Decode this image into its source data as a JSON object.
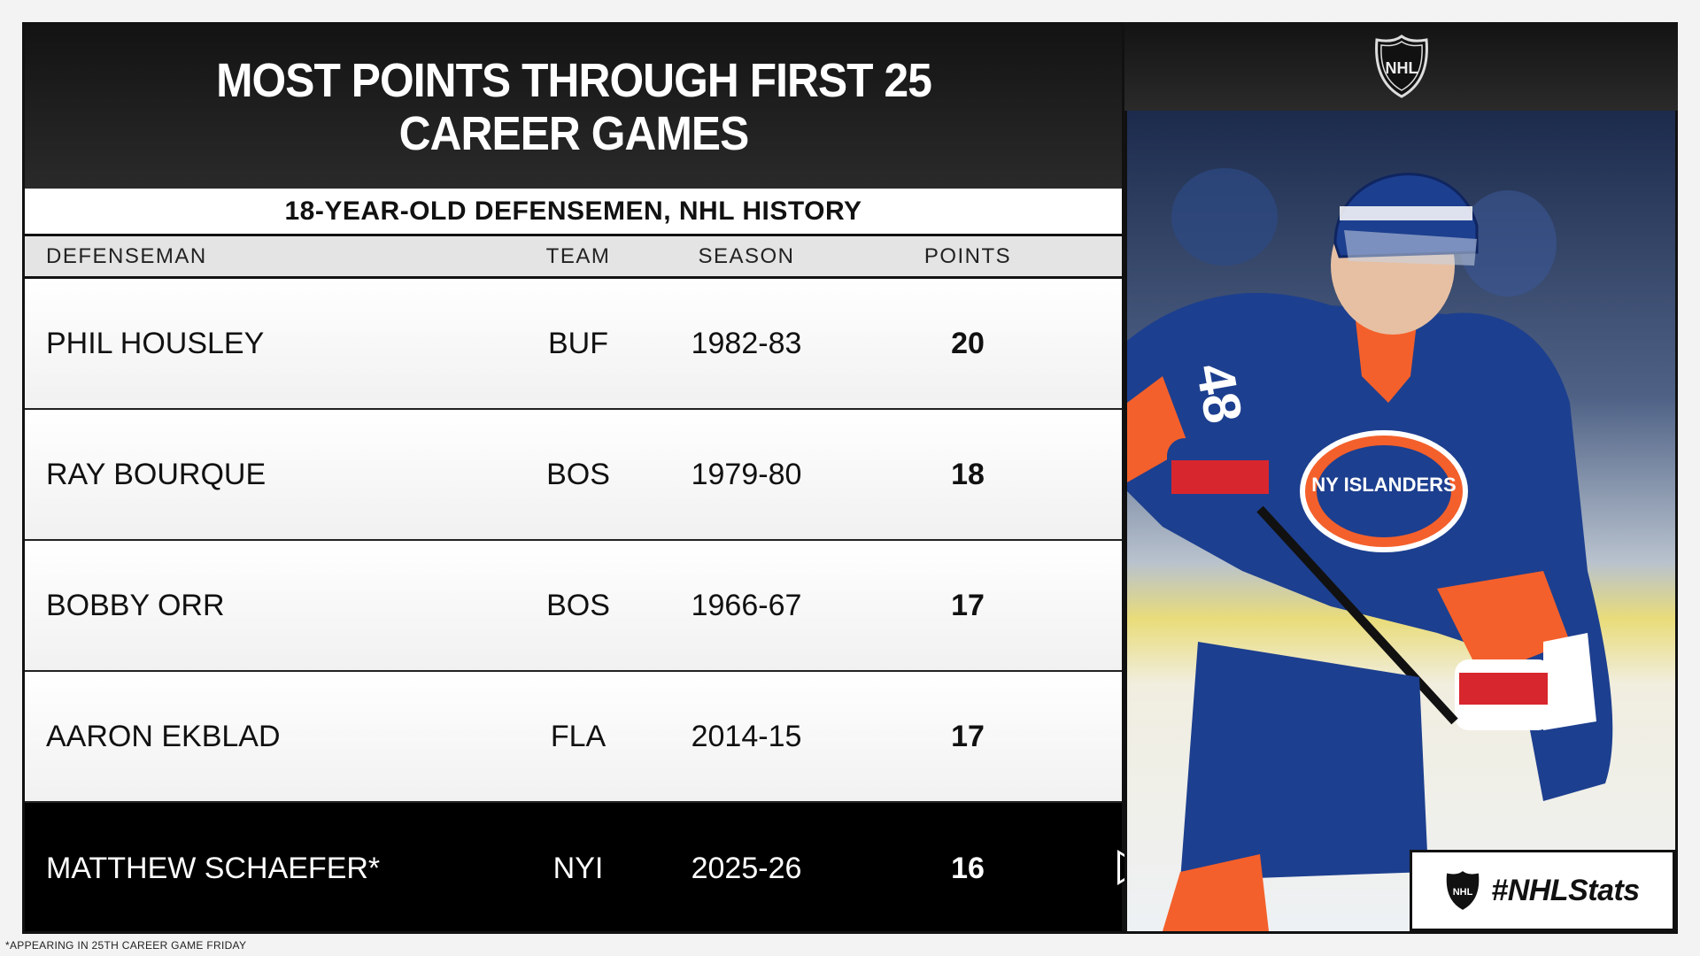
{
  "title": "MOST POINTS THROUGH FIRST 25 CAREER GAMES",
  "subtitle": "18-YEAR-OLD DEFENSEMEN, NHL HISTORY",
  "columns": {
    "name": "DEFENSEMAN",
    "team": "TEAM",
    "season": "SEASON",
    "points": "POINTS"
  },
  "rows": [
    {
      "name": "PHIL HOUSLEY",
      "team": "BUF",
      "season": "1982-83",
      "points": "20"
    },
    {
      "name": "RAY BOURQUE",
      "team": "BOS",
      "season": "1979-80",
      "points": "18"
    },
    {
      "name": "BOBBY ORR",
      "team": "BOS",
      "season": "1966-67",
      "points": "17"
    },
    {
      "name": "AARON EKBLAD",
      "team": "FLA",
      "season": "2014-15",
      "points": "17"
    },
    {
      "name": "MATTHEW SCHAEFER*",
      "team": "NYI",
      "season": "2025-26",
      "points": "16"
    }
  ],
  "footnote": "*APPEARING IN 25TH CAREER GAME FRIDAY",
  "hashtag": "#NHLStats",
  "logo_text": "NHL",
  "photo": {
    "jersey_number": "48",
    "crest_text": "NY ISLANDERS"
  },
  "colors": {
    "islanders_blue": "#1d3f8f",
    "islanders_orange": "#f4602b",
    "highlight_row": "#000000"
  }
}
